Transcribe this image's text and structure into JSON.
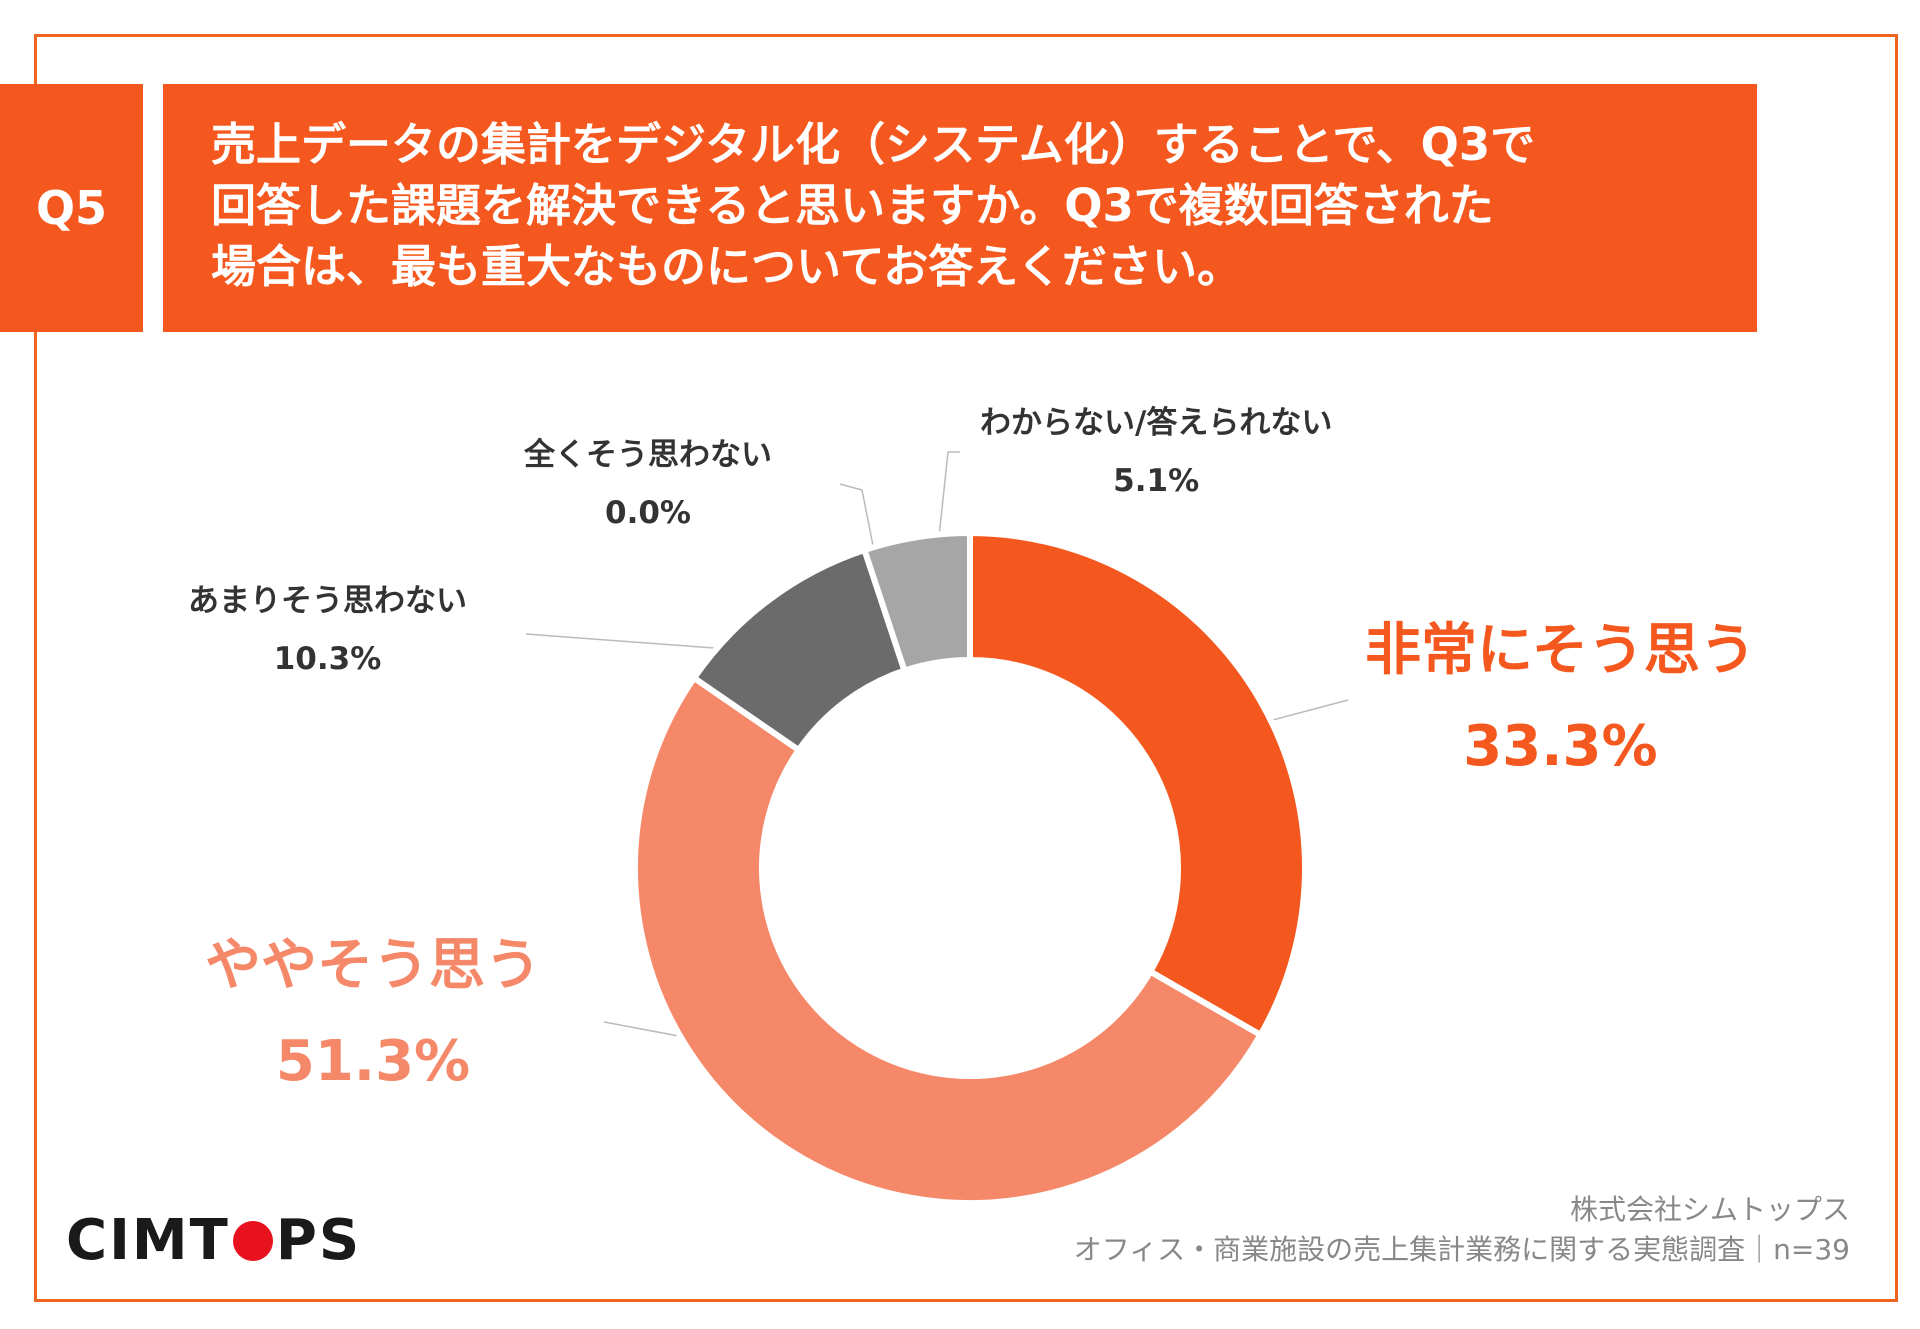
{
  "question": {
    "badge": "Q5",
    "lines": [
      "売上データの集計をデジタル化（システム化）することで、Q3で",
      "回答した課題を解決できると思いますか。Q3で複数回答された",
      "場合は、最も重大なものについてお答えください。"
    ]
  },
  "chart_data": {
    "type": "pie",
    "variant": "donut",
    "title": "",
    "categories": [
      "非常にそう思う",
      "ややそう思う",
      "あまりそう思わない",
      "全くそう思わない",
      "わからない/答えられない"
    ],
    "values": [
      33.3,
      51.3,
      10.3,
      0.0,
      5.1
    ],
    "value_labels": [
      "33.3%",
      "51.3%",
      "10.3%",
      "0.0%",
      "5.1%"
    ],
    "colors": [
      "#f5581e",
      "#f58868",
      "#6b6b6b",
      "#9a9a9a",
      "#a6a6a6"
    ]
  },
  "footer": {
    "logo_left": "CIMT",
    "logo_right": "PS",
    "company": "株式会社シムトップス",
    "survey": "オフィス・商業施設の売上集計業務に関する実態調査｜n=39"
  }
}
